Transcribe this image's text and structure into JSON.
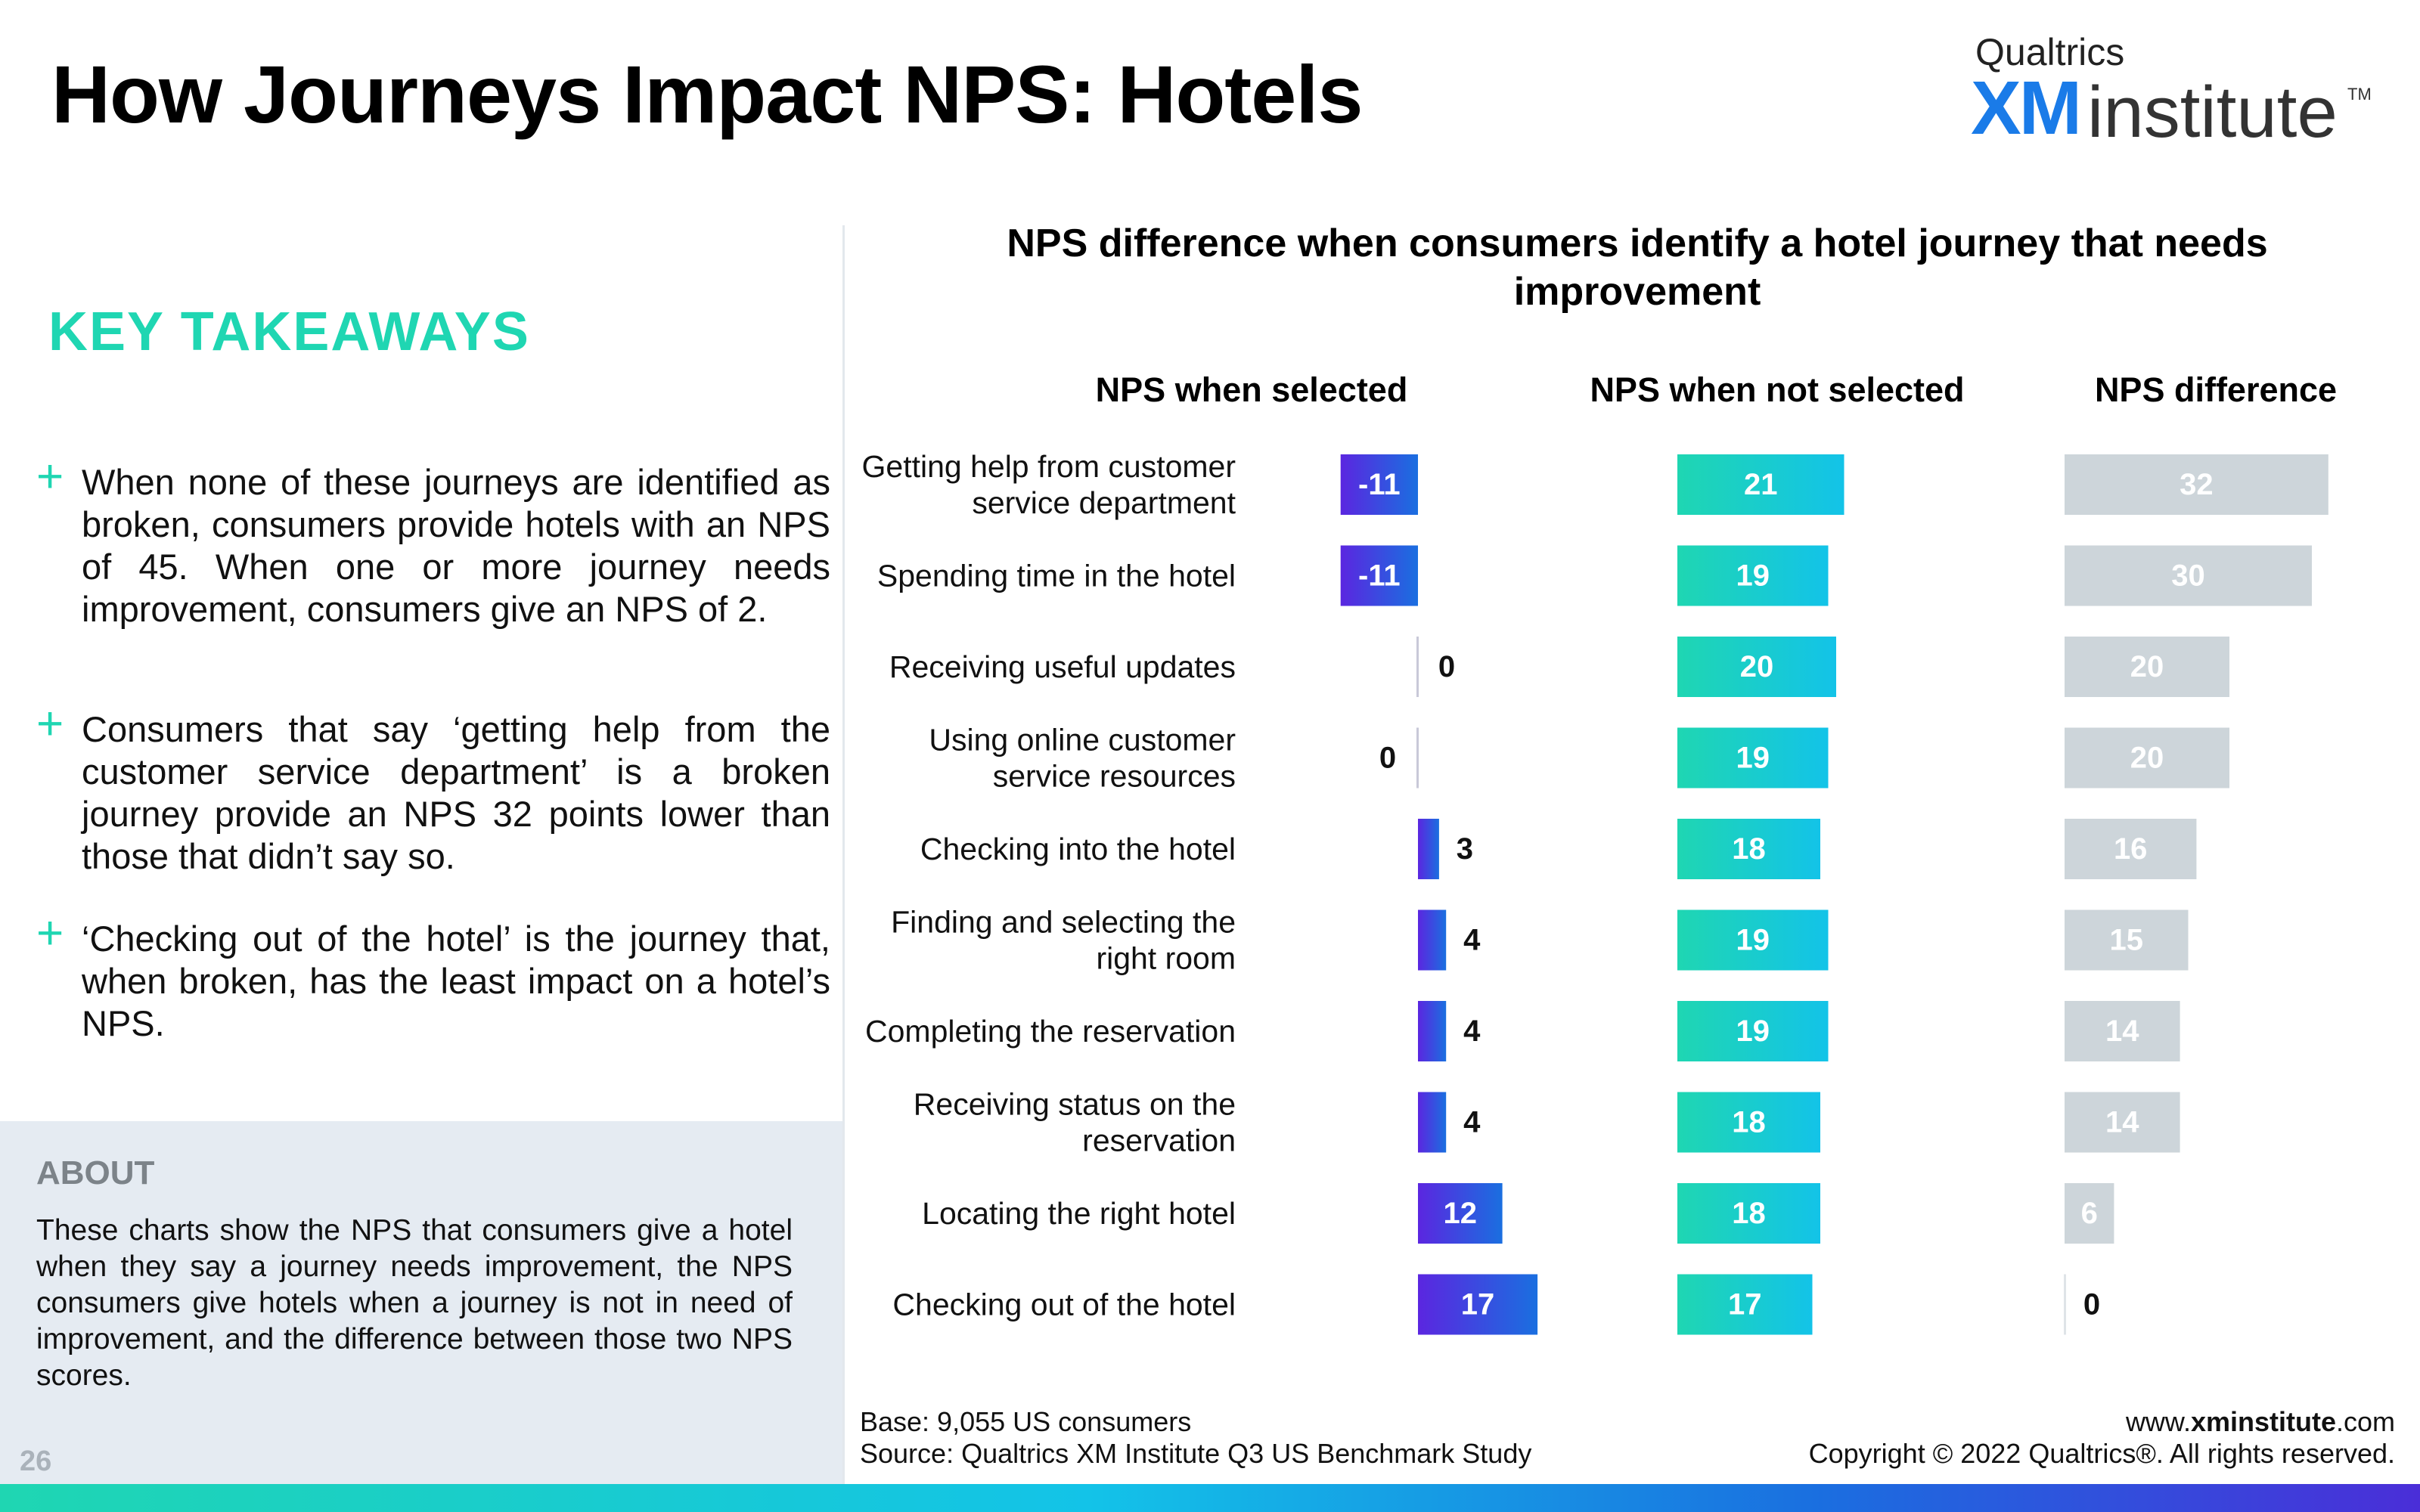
{
  "header": {
    "title": "How Journeys Impact NPS: Hotels",
    "brand_qualtrics": "Qualtrics",
    "brand_xm": "XM",
    "brand_institute": "institute",
    "brand_tm": "TM"
  },
  "sidebar": {
    "key_takeaways_title": "KEY TAKEAWAYS",
    "takeaways": [
      "When none of these journeys are identified as broken, consumers provide hotels with an NPS of 45. When one or more journey needs improvement, consumers give an NPS of 2.",
      "Consumers that say ‘getting help from the customer service department’ is a broken journey provide an NPS 32 points lower than those that didn’t say so.",
      "‘Checking out of the hotel’ is the journey that, when broken, has the least impact on a hotel’s NPS."
    ],
    "plus_glyph": "+",
    "about_title": "ABOUT",
    "about_text": "These charts show the NPS that consumers give a hotel when they say a journey needs improvement, the NPS consumers give hotels when a journey is not in need of improvement, and the difference between those two NPS scores.",
    "page_number": "26"
  },
  "footer": {
    "base": "Base: 9,055 US consumers",
    "source": "Source: Qualtrics XM Institute Q3 US Benchmark Study",
    "web_prefix": "www.",
    "web_bold": "xminstitute",
    "web_suffix": ".com",
    "copyright": "Copyright © 2022 Qualtrics®. All rights reserved."
  },
  "colors": {
    "accent_green": "#1fd6b2",
    "selected_gradient": [
      "#5b26e0",
      "#1a6fe0"
    ],
    "not_selected_gradient": [
      "#1fd6b2",
      "#13c3e8"
    ],
    "difference_bar": "#cdd5da",
    "about_bg": "#e5ebf2"
  },
  "chart_data": {
    "type": "bar",
    "title": "NPS difference when consumers identify a hotel journey that needs improvement",
    "categories": [
      "Getting help from customer service department",
      "Spending time in the hotel",
      "Receiving useful updates",
      "Using online customer service resources",
      "Checking into the hotel",
      "Finding and selecting the right room",
      "Completing the reservation",
      "Receiving status on the reservation",
      "Locating the right hotel",
      "Checking out of the hotel"
    ],
    "category_lines": [
      [
        "Getting help from customer",
        "service department"
      ],
      [
        "Spending time in the hotel"
      ],
      [
        "Receiving useful updates"
      ],
      [
        "Using online customer",
        "service resources"
      ],
      [
        "Checking into the hotel"
      ],
      [
        "Finding and selecting the",
        "right room"
      ],
      [
        "Completing the reservation"
      ],
      [
        "Receiving status on the",
        "reservation"
      ],
      [
        "Locating the right hotel"
      ],
      [
        "Checking out of the hotel"
      ]
    ],
    "series": [
      {
        "name": "NPS when selected",
        "values": [
          -11,
          -11,
          0,
          0,
          3,
          4,
          4,
          4,
          12,
          17
        ]
      },
      {
        "name": "NPS when not selected",
        "values": [
          21,
          19,
          20,
          19,
          18,
          19,
          19,
          18,
          18,
          17
        ]
      },
      {
        "name": "NPS difference",
        "values": [
          32,
          30,
          20,
          20,
          16,
          15,
          14,
          14,
          6,
          0
        ]
      }
    ]
  }
}
